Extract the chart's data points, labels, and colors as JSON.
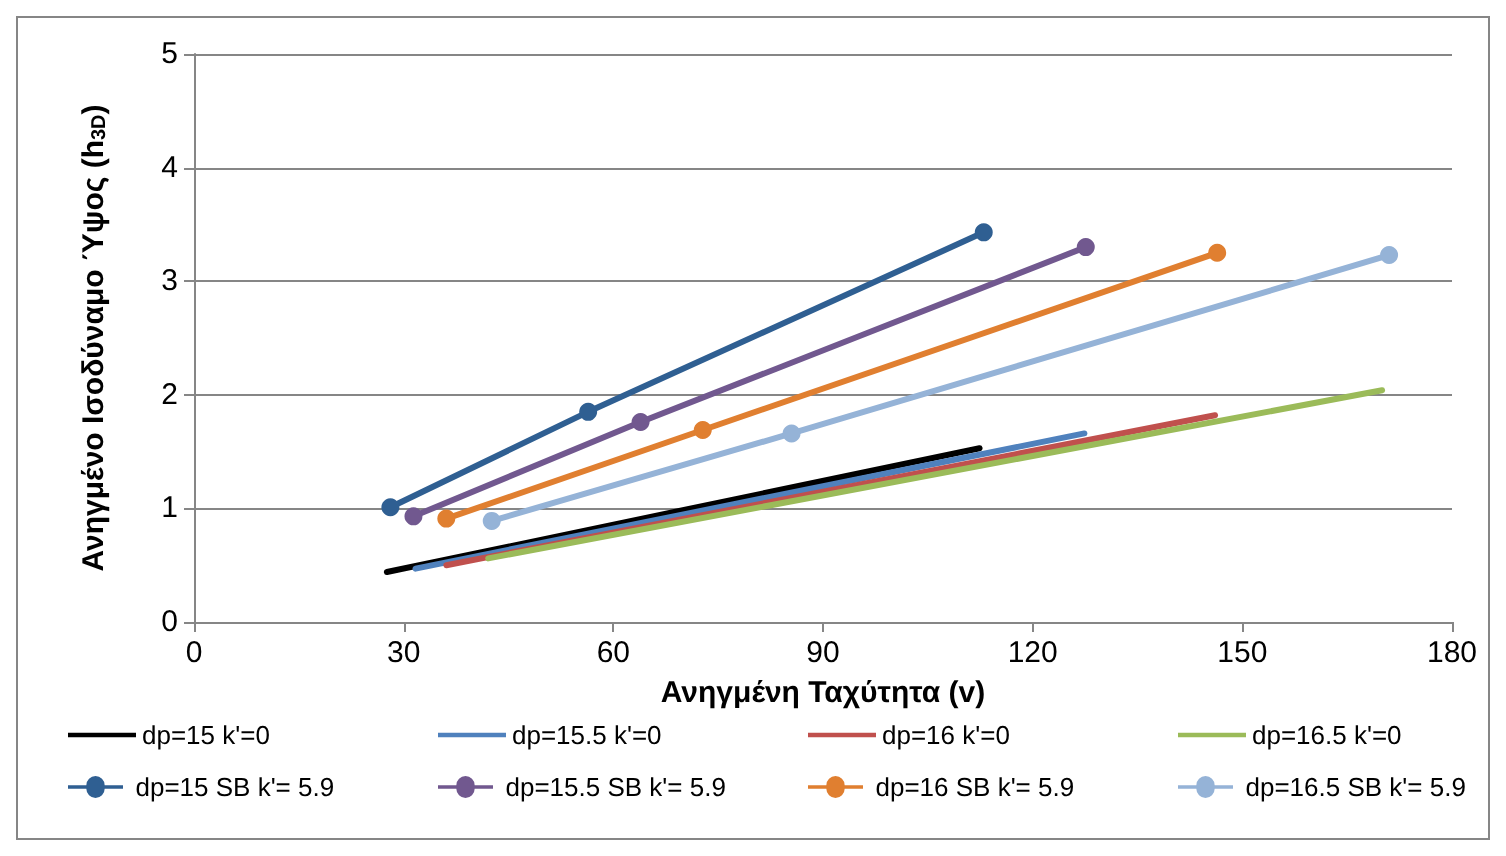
{
  "chart_data": {
    "type": "line",
    "xlabel": "Ανηγμένη Ταχύτητα (v)",
    "ylabel": "Ανηγμένο Ισοδύναμο Ύψος (h$_{3D}$)",
    "xlim": [
      0,
      180
    ],
    "xticks": [
      0,
      30,
      60,
      90,
      120,
      150,
      180
    ],
    "ylim": [
      0,
      5
    ],
    "yticks": [
      0,
      1,
      2,
      3,
      4,
      5
    ],
    "grid": "y",
    "legend": "bottom",
    "line_style": "solid",
    "series": [
      {
        "name": "dp=15 k'=0",
        "color": "#000000",
        "marker": "none",
        "x": [
          27.6,
          112.4
        ],
        "values": [
          0.44,
          1.53
        ]
      },
      {
        "name": "dp=15.5 k'=0",
        "color": "#4f81bd",
        "marker": "none",
        "x": [
          31.7,
          127.4
        ],
        "values": [
          0.47,
          1.66
        ]
      },
      {
        "name": "dp=16 k'=0",
        "color": "#c0504d",
        "marker": "none",
        "x": [
          36.1,
          146.1
        ],
        "values": [
          0.5,
          1.82
        ]
      },
      {
        "name": "dp=16.5 k'=0",
        "color": "#9bbb59",
        "marker": "none",
        "x": [
          42.1,
          170
        ],
        "values": [
          0.56,
          2.04
        ]
      },
      {
        "name": "dp=15 SB k'= 5.9",
        "color": "#2f5f92",
        "marker": "circle",
        "x": [
          28.1,
          56.4,
          113
        ],
        "values": [
          1.01,
          1.85,
          3.43
        ]
      },
      {
        "name": "dp=15.5 SB k'= 5.9",
        "color": "#71588f",
        "marker": "circle",
        "x": [
          31.4,
          63.9,
          127.6
        ],
        "values": [
          0.93,
          1.76,
          3.3
        ]
      },
      {
        "name": "dp=16 SB k'= 5.9",
        "color": "#e07f30",
        "marker": "circle",
        "x": [
          36.1,
          72.8,
          146.4
        ],
        "values": [
          0.91,
          1.69,
          3.25
        ]
      },
      {
        "name": "dp=16.5 SB k'= 5.9",
        "color": "#95b3d7",
        "marker": "circle",
        "x": [
          42.6,
          85.5,
          171
        ],
        "values": [
          0.89,
          1.66,
          3.23
        ]
      }
    ]
  }
}
